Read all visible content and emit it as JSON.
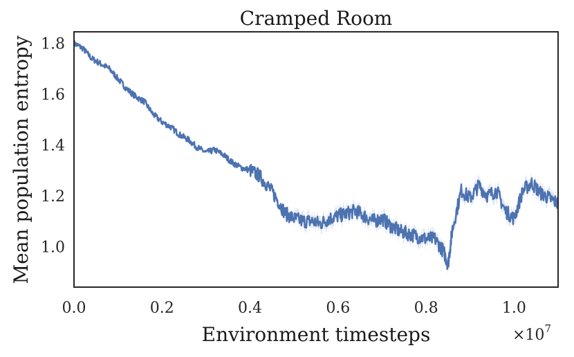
{
  "chart_data": {
    "type": "line",
    "title": "Cramped Room",
    "xlabel": "Environment timesteps",
    "ylabel": "Mean population entropy",
    "x_multiplier_label": "×10",
    "x_multiplier_exponent": "7",
    "xlim": [
      0.0,
      1.1
    ],
    "ylim": [
      0.84,
      1.845
    ],
    "x_ticks": [
      0.0,
      0.2,
      0.4,
      0.6,
      0.8,
      1.0
    ],
    "x_tick_labels": [
      "0.0",
      "0.2",
      "0.4",
      "0.6",
      "0.8",
      "1.0"
    ],
    "y_ticks": [
      1.0,
      1.2,
      1.4,
      1.6,
      1.8
    ],
    "y_tick_labels": [
      "1.0",
      "1.2",
      "1.4",
      "1.6",
      "1.8"
    ],
    "grid": false,
    "line_color": "#4c72b0",
    "band_color": "#c9d6ec",
    "series": [
      {
        "x": [
          0.0,
          0.02,
          0.04,
          0.06,
          0.08,
          0.1,
          0.12,
          0.14,
          0.16,
          0.18,
          0.2,
          0.22,
          0.24,
          0.26,
          0.28,
          0.3,
          0.32,
          0.34,
          0.36,
          0.38,
          0.4,
          0.42,
          0.44,
          0.46,
          0.48,
          0.5,
          0.52,
          0.54,
          0.56,
          0.58,
          0.6,
          0.62,
          0.64,
          0.66,
          0.68,
          0.7,
          0.72,
          0.74,
          0.76,
          0.78,
          0.8,
          0.82,
          0.84,
          0.85,
          0.86,
          0.88,
          0.9,
          0.92,
          0.94,
          0.96,
          0.98,
          1.0,
          1.02,
          1.04,
          1.06,
          1.08,
          1.1
        ],
        "y": [
          1.8,
          1.78,
          1.74,
          1.72,
          1.7,
          1.66,
          1.62,
          1.59,
          1.57,
          1.52,
          1.49,
          1.47,
          1.44,
          1.42,
          1.39,
          1.37,
          1.38,
          1.36,
          1.33,
          1.31,
          1.3,
          1.28,
          1.24,
          1.19,
          1.13,
          1.11,
          1.1,
          1.1,
          1.09,
          1.11,
          1.12,
          1.13,
          1.14,
          1.12,
          1.1,
          1.11,
          1.08,
          1.06,
          1.05,
          1.04,
          1.03,
          1.03,
          0.98,
          0.93,
          1.07,
          1.22,
          1.19,
          1.24,
          1.2,
          1.22,
          1.14,
          1.11,
          1.22,
          1.25,
          1.21,
          1.19,
          1.17
        ]
      }
    ]
  }
}
